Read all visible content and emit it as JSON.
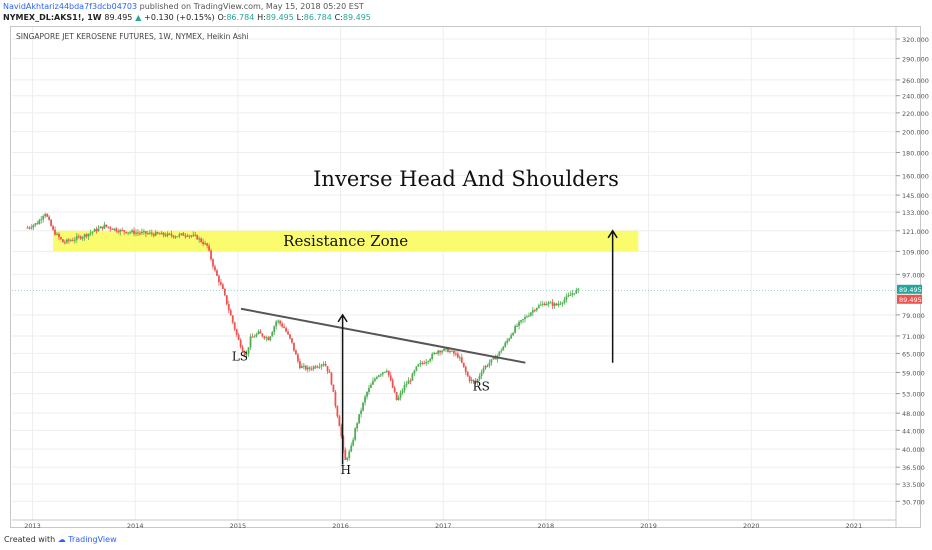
{
  "header": {
    "author": "NavidAkhtariz44bda7f3dcb04703",
    "published": "published on TradingView.com, May 15, 2018 05:20 EST",
    "symbol": "NYMEX_DL:AKS1!, 1W",
    "price": "89.495",
    "change": "+0.130 (+0.15%)",
    "o_label": "O:",
    "o_value": "86.784",
    "h_label": "H:",
    "h_value": "89.495",
    "l_label": "L:",
    "l_value": "86.784",
    "c_label": "C:",
    "c_value": "89.495",
    "up_arrow": "▲"
  },
  "footer": {
    "created_with": "Created with",
    "brand": "TradingView"
  },
  "colors": {
    "up": "#26a69a",
    "up_bright": "#4caf50",
    "down": "#ef5350",
    "zone": "#fafa55",
    "trendline": "#555555",
    "arrow": "#111111",
    "grid": "#eeeeee",
    "price_tag_up": "#26a69a",
    "price_tag_down": "#ef5350"
  },
  "chart_data": {
    "type": "candlestick",
    "title": "SINGAPORE JET KEROSENE FUTURES, 1W, NYMEX, Heikin Ashi",
    "scale": "log",
    "y_ticks": [
      "320.000",
      "290.000",
      "260.000",
      "240.000",
      "220.000",
      "200.000",
      "180.000",
      "160.000",
      "145.000",
      "133.000",
      "121.000",
      "109.000",
      "97.000",
      "79.000",
      "71.000",
      "65.000",
      "59.000",
      "53.000",
      "48.000",
      "44.000",
      "40.000",
      "36.500",
      "33.500",
      "30.700"
    ],
    "x_ticks": [
      "2013",
      "2014",
      "2015",
      "2016",
      "2017",
      "2018",
      "2019",
      "2020",
      "2021"
    ],
    "x_range": [
      2012.8,
      2021.4
    ],
    "y_range": [
      28.5,
      340
    ],
    "last_price": "89.495",
    "last_price_tags": [
      "89.495",
      "89.495"
    ],
    "series": [
      {
        "name": "price",
        "x": [
          2012.95,
          2013.05,
          2013.12,
          2013.2,
          2013.3,
          2013.5,
          2013.7,
          2013.85,
          2014.0,
          2014.2,
          2014.4,
          2014.5,
          2014.6,
          2014.7,
          2014.78,
          2014.85,
          2014.92,
          2015.0,
          2015.05,
          2015.08,
          2015.12,
          2015.2,
          2015.3,
          2015.38,
          2015.45,
          2015.52,
          2015.6,
          2015.68,
          2015.76,
          2015.84,
          2015.9,
          2015.95,
          2016.0,
          2016.04,
          2016.1,
          2016.15,
          2016.25,
          2016.35,
          2016.45,
          2016.55,
          2016.62,
          2016.68,
          2016.75,
          2016.85,
          2016.95,
          2017.05,
          2017.15,
          2017.25,
          2017.32,
          2017.38,
          2017.45,
          2017.52,
          2017.6,
          2017.7,
          2017.8,
          2017.9,
          2018.0,
          2018.1,
          2018.2,
          2018.28,
          2018.33
        ],
        "y": [
          123,
          126,
          133,
          121,
          114,
          118,
          124,
          121,
          120,
          119,
          118,
          119,
          117,
          112,
          98,
          90,
          80,
          70,
          66,
          64,
          70,
          72,
          70,
          77,
          74,
          69,
          61,
          60,
          61,
          62,
          58,
          50,
          44,
          37.5,
          40,
          45,
          53,
          58,
          60,
          51,
          55,
          57,
          61,
          63,
          66,
          66,
          64,
          57,
          56,
          60,
          62,
          64,
          68,
          74,
          78,
          82,
          84,
          83,
          86,
          89,
          89.5
        ]
      }
    ],
    "annotations": {
      "title_text": "Inverse Head And Shoulders",
      "zone_label": "Resistance Zone",
      "zone_range": [
        109,
        121
      ],
      "zone_x": [
        2013.2,
        2018.9
      ],
      "neckline": {
        "x": [
          2015.03,
          2017.8
        ],
        "y": [
          81.5,
          62
        ]
      },
      "pattern_arrow": {
        "x": 2016.02,
        "y_from": 37,
        "y_to": 79
      },
      "target_arrow": {
        "x": 2018.65,
        "y_from": 62,
        "y_to": 121
      },
      "labels": [
        {
          "text": "LS",
          "x": 2015.02,
          "y": 64
        },
        {
          "text": "H",
          "x": 2016.05,
          "y": 36
        },
        {
          "text": "RS",
          "x": 2017.37,
          "y": 55
        }
      ]
    }
  }
}
